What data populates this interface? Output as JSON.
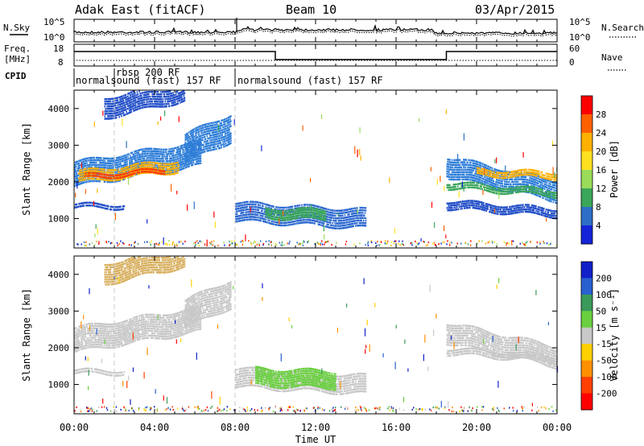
{
  "header": {
    "station": "Adak East (fitACF)",
    "beam": "Beam 10",
    "date": "03/Apr/2015"
  },
  "panels": {
    "nsky_label": "N.Sky",
    "nsky_ticks": [
      "10^5",
      "10^0"
    ],
    "nsearch_label": "N.Search",
    "nsearch_ticks": [
      "10^5",
      "10^0"
    ],
    "freq_label": "Freq.",
    "freq_unit": "[MHz]",
    "freq_ticks": [
      "18",
      "8"
    ],
    "nave_label": "Nave",
    "nave_ticks": [
      "60",
      "0"
    ],
    "cpid_label": "CPID",
    "cpid_segments": [
      {
        "label": "normalsound (fast) 157 RF",
        "start_hour": 0
      },
      {
        "label": "rbsp 200 RF",
        "start_hour": 2
      },
      {
        "label": "normalsound (fast) 157 RF",
        "start_hour": 8
      }
    ],
    "freq_steps": [
      {
        "from_hour": 0,
        "to_hour": 10,
        "level": "high"
      },
      {
        "from_hour": 10,
        "to_hour": 18.5,
        "level": "low"
      },
      {
        "from_hour": 18.5,
        "to_hour": 24,
        "level": "high"
      }
    ]
  },
  "chart_data": [
    {
      "type": "heatmap",
      "name": "power",
      "ylabel": "Slant Range [km]",
      "xlabel": "Time UT",
      "xlim_hours": [
        0,
        24
      ],
      "ylim": [
        200,
        4500
      ],
      "x_tick_labels": [
        "00:00",
        "04:00",
        "08:00",
        "12:00",
        "16:00",
        "20:00",
        "00:00"
      ],
      "y_ticks": [
        1000,
        2000,
        3000,
        4000
      ],
      "colorbar_label": "Power [dB]",
      "colorbar_ticks": [
        "28",
        "24",
        "20",
        "16",
        "12",
        "8",
        "4"
      ],
      "colorbar_colors": [
        "#ff0000",
        "#ff6000",
        "#ffb000",
        "#ffe020",
        "#9adc5a",
        "#3aa65a",
        "#2e6ec6",
        "#1424d8"
      ],
      "regions": [
        {
          "t0": 0.0,
          "t1": 6.3,
          "r0": 1850,
          "r1": 2550,
          "slope": 90,
          "color": "#2f7ed8"
        },
        {
          "t0": 0.2,
          "t1": 5.2,
          "r0": 1950,
          "r1": 2300,
          "slope": 60,
          "color": "#ffb000"
        },
        {
          "t0": 0.5,
          "t1": 4.5,
          "r0": 2050,
          "r1": 2200,
          "slope": 40,
          "color": "#ff4000"
        },
        {
          "t0": 5.5,
          "t1": 7.8,
          "r0": 2500,
          "r1": 3300,
          "slope": 250,
          "color": "#2f7ed8"
        },
        {
          "t0": 1.5,
          "t1": 5.5,
          "r0": 3700,
          "r1": 4300,
          "slope": 120,
          "color": "#2450c8"
        },
        {
          "t0": 8.0,
          "t1": 14.5,
          "r0": 900,
          "r1": 1450,
          "slope": -30,
          "color": "#2f6ad0"
        },
        {
          "t0": 9.5,
          "t1": 12.5,
          "r0": 1000,
          "r1": 1300,
          "slope": -20,
          "color": "#3aa65a"
        },
        {
          "t0": 18.5,
          "t1": 24.0,
          "r0": 2100,
          "r1": 2700,
          "slope": -120,
          "color": "#2f7ed8"
        },
        {
          "t0": 20.0,
          "t1": 24.0,
          "r0": 2150,
          "r1": 2350,
          "slope": -20,
          "color": "#ffb000"
        },
        {
          "t0": 18.5,
          "t1": 24.0,
          "r0": 1800,
          "r1": 2000,
          "slope": -40,
          "color": "#3aa65a"
        },
        {
          "t0": 18.5,
          "t1": 24.0,
          "r0": 1250,
          "r1": 1500,
          "slope": -40,
          "color": "#2450c8"
        },
        {
          "t0": 0.0,
          "t1": 2.5,
          "r0": 1250,
          "r1": 1400,
          "slope": 0,
          "color": "#2450c8"
        }
      ]
    },
    {
      "type": "heatmap",
      "name": "velocity",
      "ylabel": "Slant Range [km]",
      "xlabel": "Time UT",
      "xlim_hours": [
        0,
        24
      ],
      "ylim": [
        200,
        4500
      ],
      "x_tick_labels": [
        "00:00",
        "04:00",
        "08:00",
        "12:00",
        "16:00",
        "20:00",
        "00:00"
      ],
      "y_ticks": [
        1000,
        2000,
        3000,
        4000
      ],
      "colorbar_label": "Velocity [m s⁻¹]",
      "colorbar_ticks": [
        "200",
        "100",
        "50",
        "15",
        "-15",
        "-50",
        "-100",
        "-200"
      ],
      "colorbar_colors": [
        "#1020c8",
        "#2860d0",
        "#3a9a5a",
        "#6ad040",
        "#c8c8c8",
        "#ffd000",
        "#ff9000",
        "#ff4000",
        "#ff0000"
      ],
      "regions": [
        {
          "t0": 0.0,
          "t1": 6.3,
          "r0": 1850,
          "r1": 2550,
          "slope": 90,
          "color": "#c8c8c8"
        },
        {
          "t0": 5.5,
          "t1": 7.8,
          "r0": 2500,
          "r1": 3300,
          "slope": 250,
          "color": "#c8c8c8"
        },
        {
          "t0": 1.5,
          "t1": 5.5,
          "r0": 3700,
          "r1": 4300,
          "slope": 120,
          "color": "#d8b060"
        },
        {
          "t0": 8.0,
          "t1": 14.5,
          "r0": 900,
          "r1": 1450,
          "slope": -30,
          "color": "#c8c8c8"
        },
        {
          "t0": 9.0,
          "t1": 13.0,
          "r0": 950,
          "r1": 1450,
          "slope": -20,
          "color": "#6ad040"
        },
        {
          "t0": 18.5,
          "t1": 24.0,
          "r0": 2100,
          "r1": 2700,
          "slope": -120,
          "color": "#c8c8c8"
        },
        {
          "t0": 18.5,
          "t1": 24.0,
          "r0": 1800,
          "r1": 2000,
          "slope": -40,
          "color": "#c8c8c8"
        },
        {
          "t0": 0.0,
          "t1": 2.5,
          "r0": 1250,
          "r1": 1400,
          "slope": 0,
          "color": "#c8c8c8"
        }
      ]
    }
  ]
}
